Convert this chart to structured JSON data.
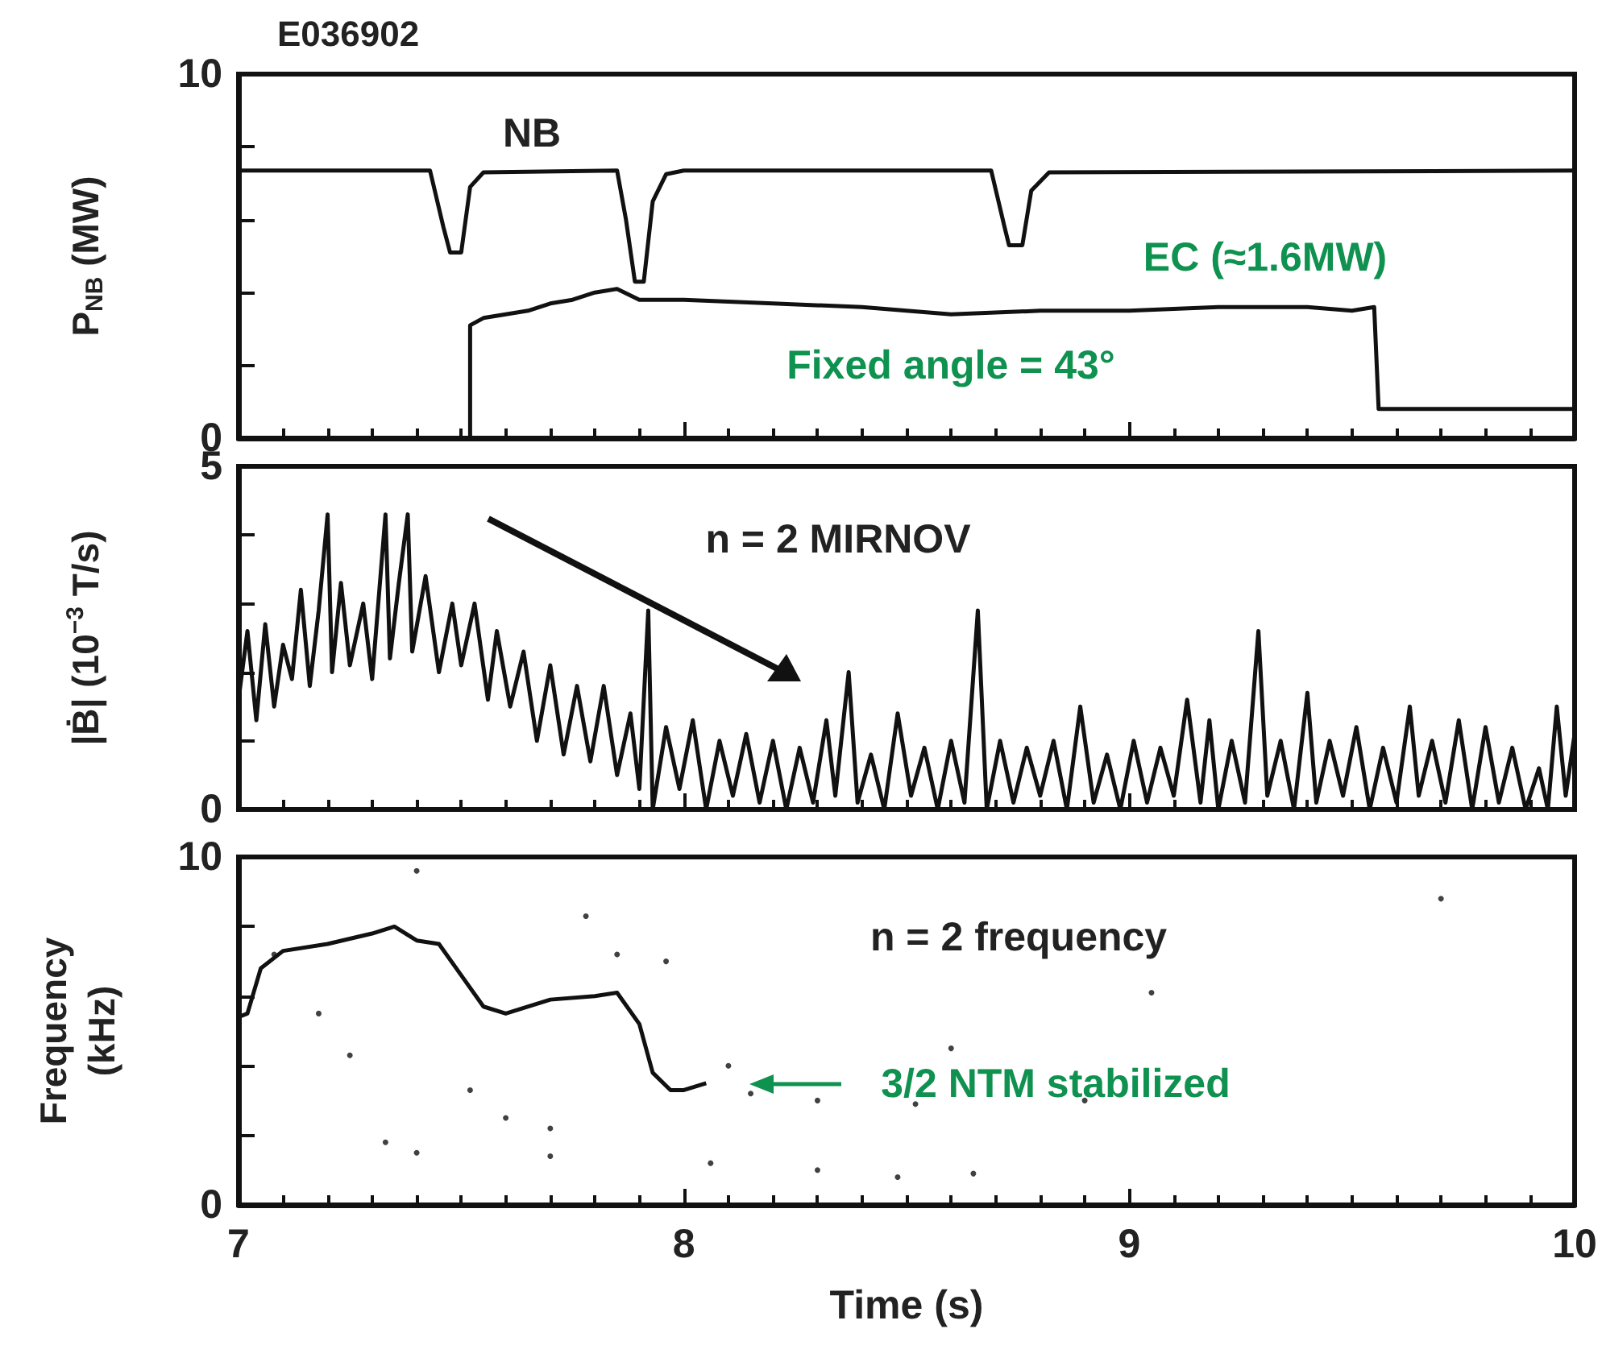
{
  "chart_data": [
    {
      "type": "line",
      "ylabel": "P$_{NB}$ (MW)",
      "xlim": [
        7,
        10
      ],
      "xticks": [
        7,
        8,
        9,
        10
      ],
      "ylim": [
        0,
        10
      ],
      "yticks": [
        0,
        {
          "value": 2,
          "label": null
        },
        {
          "value": 4,
          "label": null
        },
        {
          "value": 6,
          "label": null
        },
        {
          "value": 8,
          "label": null
        },
        10
      ],
      "tick_labels": "y",
      "grid": false,
      "marker": "none",
      "line_style": "solid",
      "series": [
        {
          "color": "#111111",
          "x": [
            7.0,
            7.43,
            7.46,
            7.475,
            7.5,
            7.52,
            7.55,
            7.85,
            7.87,
            7.89,
            7.91,
            7.93,
            7.96,
            8.0,
            8.69,
            8.72,
            8.73,
            8.76,
            8.78,
            8.82,
            10.0
          ],
          "values": [
            7.35,
            7.35,
            5.8,
            5.1,
            5.1,
            6.9,
            7.3,
            7.35,
            6.0,
            4.3,
            4.3,
            6.5,
            7.25,
            7.35,
            7.35,
            5.8,
            5.3,
            5.3,
            6.8,
            7.3,
            7.35
          ]
        },
        {
          "color": "#111111",
          "x": [
            7.52,
            7.52,
            7.55,
            7.6,
            7.65,
            7.7,
            7.75,
            7.8,
            7.85,
            7.9,
            8.0,
            8.2,
            8.4,
            8.6,
            8.8,
            9.0,
            9.2,
            9.4,
            9.5,
            9.55,
            9.56,
            10.0
          ],
          "values": [
            0,
            3.1,
            3.3,
            3.4,
            3.5,
            3.7,
            3.8,
            4.0,
            4.1,
            3.8,
            3.8,
            3.7,
            3.6,
            3.4,
            3.5,
            3.5,
            3.6,
            3.6,
            3.5,
            3.6,
            0.8,
            0.8
          ]
        }
      ],
      "annotations": [
        "E036902",
        "NB",
        "EC (≈1.6MW)",
        "Fixed angle = 43°"
      ]
    },
    {
      "type": "line",
      "ylabel": "|Ḃ| (10$^{−3}$ T/s)",
      "xlim": [
        7,
        10
      ],
      "xticks": [
        7,
        8,
        9,
        10
      ],
      "ylim": [
        0,
        5
      ],
      "yticks": [
        0,
        {
          "value": 1,
          "label": null
        },
        {
          "value": 2,
          "label": null
        },
        {
          "value": 3,
          "label": null
        },
        {
          "value": 4,
          "label": null
        },
        5
      ],
      "tick_labels": "y",
      "grid": false,
      "marker": "none",
      "line_style": "solid",
      "series": [
        {
          "color": "#111111",
          "x": [
            7.0,
            7.02,
            7.04,
            7.06,
            7.08,
            7.1,
            7.12,
            7.14,
            7.16,
            7.18,
            7.2,
            7.21,
            7.23,
            7.25,
            7.28,
            7.3,
            7.33,
            7.34,
            7.36,
            7.38,
            7.39,
            7.42,
            7.45,
            7.48,
            7.5,
            7.53,
            7.56,
            7.58,
            7.61,
            7.64,
            7.67,
            7.7,
            7.73,
            7.76,
            7.79,
            7.82,
            7.85,
            7.88,
            7.9,
            7.92,
            7.93,
            7.96,
            7.99,
            8.02,
            8.05,
            8.08,
            8.11,
            8.14,
            8.17,
            8.2,
            8.23,
            8.26,
            8.29,
            8.32,
            8.34,
            8.37,
            8.39,
            8.42,
            8.45,
            8.48,
            8.51,
            8.54,
            8.57,
            8.6,
            8.63,
            8.66,
            8.68,
            8.71,
            8.74,
            8.77,
            8.8,
            8.83,
            8.86,
            8.89,
            8.92,
            8.95,
            8.98,
            9.01,
            9.04,
            9.07,
            9.1,
            9.13,
            9.16,
            9.18,
            9.2,
            9.23,
            9.26,
            9.29,
            9.31,
            9.34,
            9.37,
            9.4,
            9.42,
            9.45,
            9.48,
            9.51,
            9.54,
            9.57,
            9.6,
            9.63,
            9.65,
            9.68,
            9.71,
            9.74,
            9.77,
            9.8,
            9.83,
            9.86,
            9.89,
            9.92,
            9.94,
            9.96,
            9.98,
            10.0
          ],
          "values": [
            1.6,
            2.6,
            1.3,
            2.7,
            1.5,
            2.4,
            1.9,
            3.2,
            1.8,
            2.9,
            4.3,
            2.0,
            3.3,
            2.1,
            3.0,
            1.9,
            4.3,
            2.2,
            3.3,
            4.3,
            2.3,
            3.4,
            2.0,
            3.0,
            2.1,
            3.0,
            1.6,
            2.6,
            1.5,
            2.3,
            1.0,
            2.1,
            0.8,
            1.8,
            0.7,
            1.8,
            0.5,
            1.4,
            0.3,
            2.9,
            0.0,
            1.2,
            0.3,
            1.3,
            0.0,
            1.0,
            0.2,
            1.1,
            0.1,
            1.0,
            0.0,
            0.9,
            0.1,
            1.3,
            0.2,
            2.0,
            0.1,
            0.8,
            0.0,
            1.4,
            0.2,
            0.9,
            0.0,
            1.0,
            0.1,
            2.9,
            0.0,
            1.0,
            0.1,
            0.9,
            0.2,
            1.0,
            0.0,
            1.5,
            0.1,
            0.8,
            0.0,
            1.0,
            0.1,
            0.9,
            0.2,
            1.6,
            0.1,
            1.3,
            0.0,
            1.0,
            0.1,
            2.6,
            0.2,
            1.0,
            0.0,
            1.7,
            0.1,
            1.0,
            0.2,
            1.2,
            0.0,
            0.9,
            0.1,
            1.5,
            0.2,
            1.0,
            0.1,
            1.3,
            0.0,
            1.2,
            0.1,
            0.9,
            0.0,
            0.6,
            0.0,
            1.5,
            0.2,
            1.1
          ]
        }
      ],
      "annotations": [
        "n = 2 MIRNOV"
      ]
    },
    {
      "type": "line",
      "ylabel": "Frequency\n(kHz)",
      "xlabel": "Time (s)",
      "xlim": [
        7,
        10
      ],
      "xticks": [
        7,
        8,
        9,
        10
      ],
      "ylim": [
        0,
        10
      ],
      "yticks": [
        0,
        {
          "value": 2,
          "label": null
        },
        {
          "value": 4,
          "label": null
        },
        {
          "value": 6,
          "label": null
        },
        {
          "value": 8,
          "label": null
        },
        10
      ],
      "grid": false,
      "marker": "none",
      "line_style": "solid",
      "series": [
        {
          "color": "#111111",
          "x": [
            7.0,
            7.02,
            7.05,
            7.1,
            7.2,
            7.3,
            7.35,
            7.4,
            7.45,
            7.5,
            7.55,
            7.6,
            7.7,
            7.8,
            7.85,
            7.9,
            7.93,
            7.97,
            8.0,
            8.05
          ],
          "values": [
            5.4,
            5.5,
            6.8,
            7.3,
            7.5,
            7.8,
            8.0,
            7.6,
            7.5,
            6.6,
            5.7,
            5.5,
            5.9,
            6.0,
            6.1,
            5.2,
            3.8,
            3.3,
            3.3,
            3.5
          ]
        },
        {
          "type": "scatter",
          "marker": "circle",
          "color": "#111111",
          "x": [
            7.4,
            7.08,
            7.18,
            7.25,
            7.33,
            7.4,
            7.52,
            7.6,
            7.7,
            7.7,
            7.78,
            7.85,
            7.96,
            8.1,
            8.06,
            8.15,
            8.3,
            8.3,
            8.48,
            8.52,
            8.6,
            8.65,
            8.9,
            9.05,
            9.7
          ],
          "values": [
            9.6,
            7.2,
            5.5,
            4.3,
            1.8,
            1.5,
            3.3,
            2.5,
            2.2,
            1.4,
            8.3,
            7.2,
            7.0,
            4.0,
            1.2,
            3.2,
            1.0,
            3.0,
            0.8,
            2.9,
            4.5,
            0.9,
            3.0,
            6.1,
            8.8
          ]
        }
      ],
      "annotations": [
        "n = 2 frequency",
        "3/2 NTM stabilized"
      ]
    }
  ]
}
